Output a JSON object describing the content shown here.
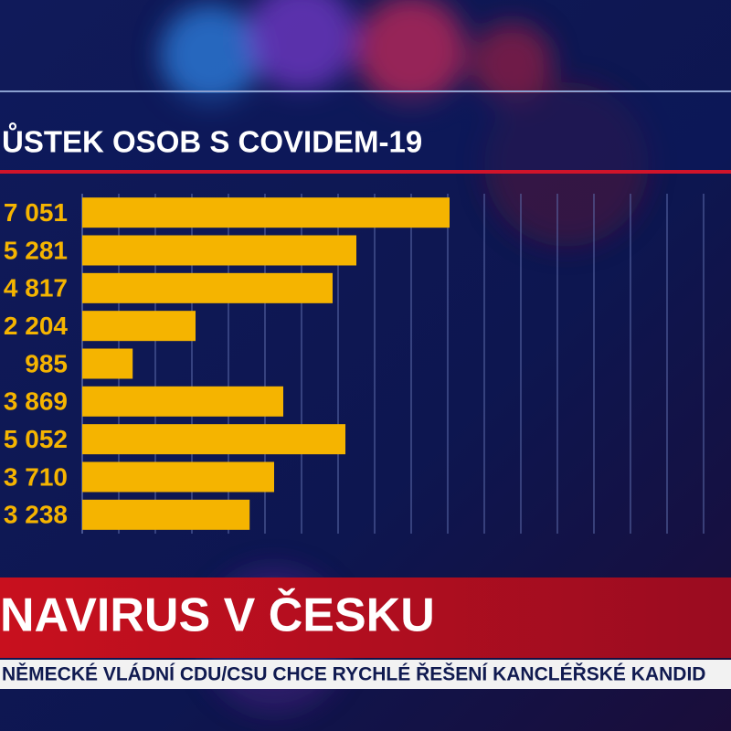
{
  "chart_data": {
    "type": "bar",
    "orientation": "horizontal",
    "title": "ŮSTEK OSOB S COVIDEM-19",
    "categories": [
      "7 051",
      "5 281",
      "4 817",
      "2 204",
      "985",
      "3 869",
      "5 052",
      "3 710",
      "3 238"
    ],
    "values": [
      10.05,
      7.5,
      6.85,
      3.1,
      1.38,
      5.5,
      7.2,
      5.25,
      4.58
    ],
    "color": "#f5b400",
    "xlim": [
      0,
      17.5
    ],
    "grid": true
  },
  "banner": {
    "title": "NAVIRUS V ČESKU",
    "ticker": "NĚMECKÉ VLÁDNÍ CDU/CSU CHCE RYCHLÉ ŘEŠENÍ KANCLÉŘSKÉ KANDID"
  }
}
